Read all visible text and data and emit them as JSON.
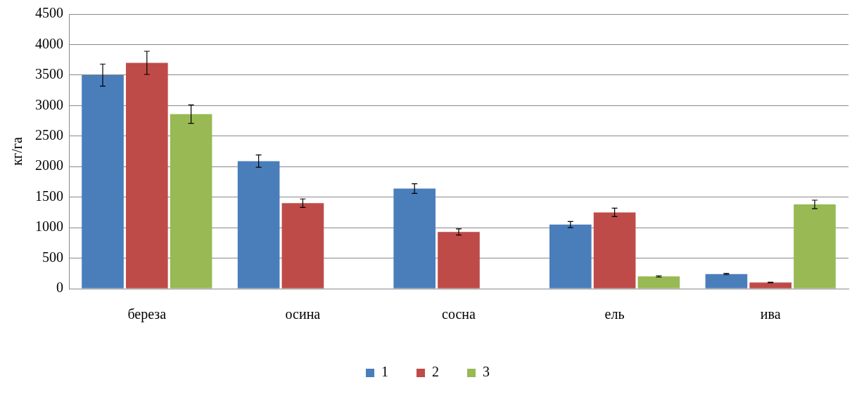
{
  "chart_data": {
    "type": "bar",
    "ylabel": "кг/га",
    "categories": [
      "береза",
      "осина",
      "сосна",
      "ель",
      "ива"
    ],
    "series": [
      {
        "name": "1",
        "color": "#4a7ebb",
        "values": [
          3500,
          2090,
          1640,
          1050,
          240
        ],
        "errors": [
          180,
          100,
          80,
          50,
          10
        ]
      },
      {
        "name": "2",
        "color": "#be4b48",
        "values": [
          3700,
          1400,
          930,
          1250,
          100
        ],
        "errors": [
          190,
          70,
          50,
          70,
          5
        ]
      },
      {
        "name": "3",
        "color": "#98b954",
        "values": [
          2860,
          null,
          null,
          200,
          1380
        ],
        "errors": [
          150,
          null,
          null,
          10,
          70
        ]
      }
    ],
    "ylim": [
      0,
      4500
    ],
    "yticks": [
      0,
      500,
      1000,
      1500,
      2000,
      2500,
      3000,
      3500,
      4000,
      4500
    ],
    "grid": "y",
    "legend": "bottom"
  }
}
